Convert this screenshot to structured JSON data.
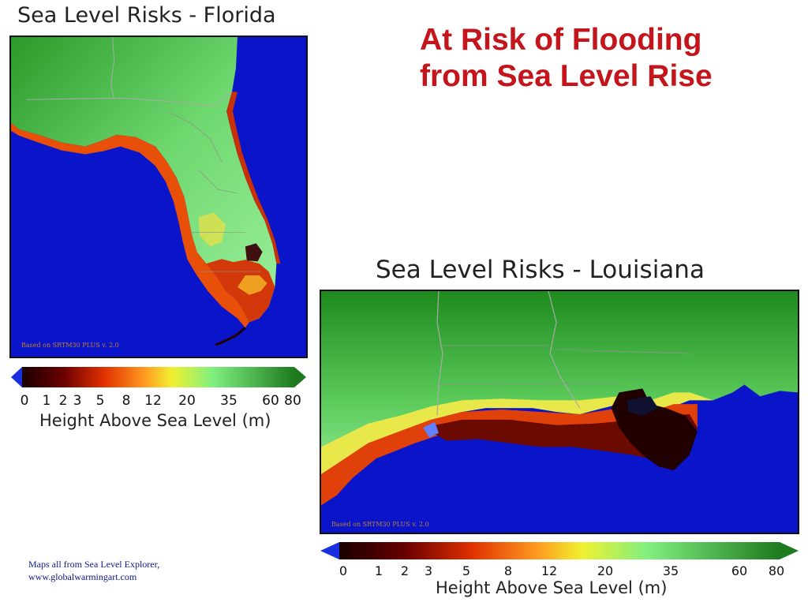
{
  "headline": {
    "line1": "At Risk of Flooding",
    "line2": "from Sea Level Rise"
  },
  "maps": [
    {
      "id": "florida",
      "title": "Sea Level Risks - Florida",
      "credit": "Based on SRTM30 PLUS v. 2.0",
      "legend_ticks": [
        "0",
        "1",
        "2",
        "3",
        "5",
        "8",
        "12",
        "20",
        "35",
        "60",
        "80"
      ],
      "legend_caption": "Height Above Sea Level (m)"
    },
    {
      "id": "louisiana",
      "title": "Sea Level Risks - Louisiana",
      "credit": "Based on SRTM30 PLUS v. 2.0",
      "legend_ticks": [
        "0",
        "1",
        "2",
        "3",
        "5",
        "8",
        "12",
        "20",
        "35",
        "60",
        "80"
      ],
      "legend_caption": "Height Above Sea Level (m)"
    }
  ],
  "colors": {
    "water": "#0a14c8",
    "low": "#1a0000",
    "mid": "#e04a00",
    "yellow": "#f0f020",
    "high": "#1e7a1e",
    "headline": "#c4151c"
  },
  "footnote": {
    "line1": "Maps all from Sea Level Explorer,",
    "line2": "www.globalwarmingart.com"
  }
}
